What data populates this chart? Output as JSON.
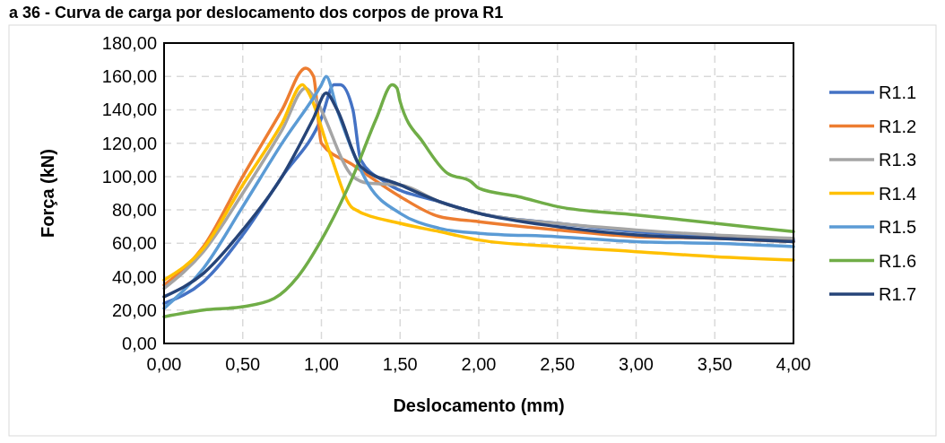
{
  "chart_data": {
    "type": "line",
    "title": "a 36 - Curva de carga por deslocamento dos corpos de prova R1",
    "xlabel": "Deslocamento (mm)",
    "ylabel": "Força (kN)",
    "xlim": [
      0,
      4
    ],
    "xticks": [
      {
        "value": 0,
        "label": "0,00"
      },
      {
        "value": 0.5,
        "label": "0,50"
      },
      {
        "value": 1,
        "label": "1,00"
      },
      {
        "value": 1.5,
        "label": "1,50"
      },
      {
        "value": 2,
        "label": "2,00"
      },
      {
        "value": 2.5,
        "label": "2,50"
      },
      {
        "value": 3,
        "label": "3,00"
      },
      {
        "value": 3.5,
        "label": "3,50"
      },
      {
        "value": 4,
        "label": "4,00"
      }
    ],
    "ylim": [
      0,
      180
    ],
    "yticks": [
      {
        "value": 0,
        "label": "0,00"
      },
      {
        "value": 20,
        "label": "20,00"
      },
      {
        "value": 40,
        "label": "40,00"
      },
      {
        "value": 60,
        "label": "60,00"
      },
      {
        "value": 80,
        "label": "80,00"
      },
      {
        "value": 100,
        "label": "100,00"
      },
      {
        "value": 120,
        "label": "120,00"
      },
      {
        "value": 140,
        "label": "140,00"
      },
      {
        "value": 160,
        "label": "160,00"
      },
      {
        "value": 180,
        "label": "180,00"
      }
    ],
    "grid": true,
    "legend": "right",
    "marker": "none",
    "line_style": "solid",
    "series": [
      {
        "name": "R1.1",
        "color": "#4472c4",
        "x": [
          0,
          0.25,
          0.5,
          0.75,
          1,
          1.08,
          1.12,
          1.2,
          1.25,
          1.4,
          1.75,
          2,
          2.5,
          3,
          3.5,
          4
        ],
        "values": [
          24,
          37,
          65,
          100,
          135,
          155,
          155,
          140,
          110,
          97,
          85,
          78,
          72,
          67,
          64,
          62
        ]
      },
      {
        "name": "R1.2",
        "color": "#ed7d31",
        "x": [
          0,
          0.25,
          0.5,
          0.75,
          0.9,
          0.95,
          1,
          1.2,
          1.5,
          1.75,
          2,
          2.5,
          3,
          3.5,
          4
        ],
        "values": [
          35,
          58,
          100,
          140,
          165,
          160,
          120,
          107,
          88,
          76,
          73,
          68,
          64,
          63,
          61
        ]
      },
      {
        "name": "R1.3",
        "color": "#a5a5a5",
        "x": [
          0,
          0.25,
          0.5,
          0.75,
          0.9,
          0.95,
          1.2,
          1.3,
          1.5,
          1.75,
          2,
          2.5,
          3,
          3.5,
          4
        ],
        "values": [
          33,
          55,
          90,
          128,
          153,
          148,
          100,
          96,
          95,
          85,
          78,
          72,
          68,
          65,
          63
        ]
      },
      {
        "name": "R1.4",
        "color": "#ffc000",
        "x": [
          0,
          0.25,
          0.5,
          0.75,
          0.88,
          0.92,
          1.05,
          1.2,
          1.5,
          1.75,
          2,
          2.5,
          3,
          3.5,
          4
        ],
        "values": [
          38,
          57,
          95,
          132,
          155,
          150,
          115,
          81,
          72,
          67,
          62,
          58,
          55,
          52,
          50
        ]
      },
      {
        "name": "R1.5",
        "color": "#5b9bd5",
        "x": [
          0,
          0.25,
          0.5,
          0.75,
          1,
          1.03,
          1.1,
          1.3,
          1.5,
          1.75,
          2,
          2.5,
          3,
          3.5,
          4
        ],
        "values": [
          21,
          45,
          82,
          120,
          155,
          160,
          140,
          95,
          78,
          69,
          66,
          64,
          61,
          60,
          58
        ]
      },
      {
        "name": "R1.6",
        "color": "#70ad47",
        "x": [
          0,
          0.25,
          0.5,
          0.7,
          0.85,
          1,
          1.2,
          1.35,
          1.45,
          1.48,
          1.5,
          1.65,
          1.8,
          1.95,
          2,
          2.25,
          2.5,
          3,
          3.5,
          4
        ],
        "values": [
          16,
          20,
          22,
          27,
          40,
          62,
          100,
          135,
          155,
          153,
          145,
          120,
          102,
          97,
          93,
          88,
          82,
          77,
          72,
          67
        ]
      },
      {
        "name": "R1.7",
        "color": "#264478",
        "x": [
          0,
          0.25,
          0.5,
          0.75,
          0.95,
          1.03,
          1.1,
          1.25,
          1.5,
          1.75,
          2,
          2.5,
          3,
          3.5,
          4
        ],
        "values": [
          28,
          42,
          68,
          100,
          135,
          150,
          140,
          106,
          95,
          85,
          78,
          70,
          65,
          63,
          61
        ]
      }
    ]
  }
}
